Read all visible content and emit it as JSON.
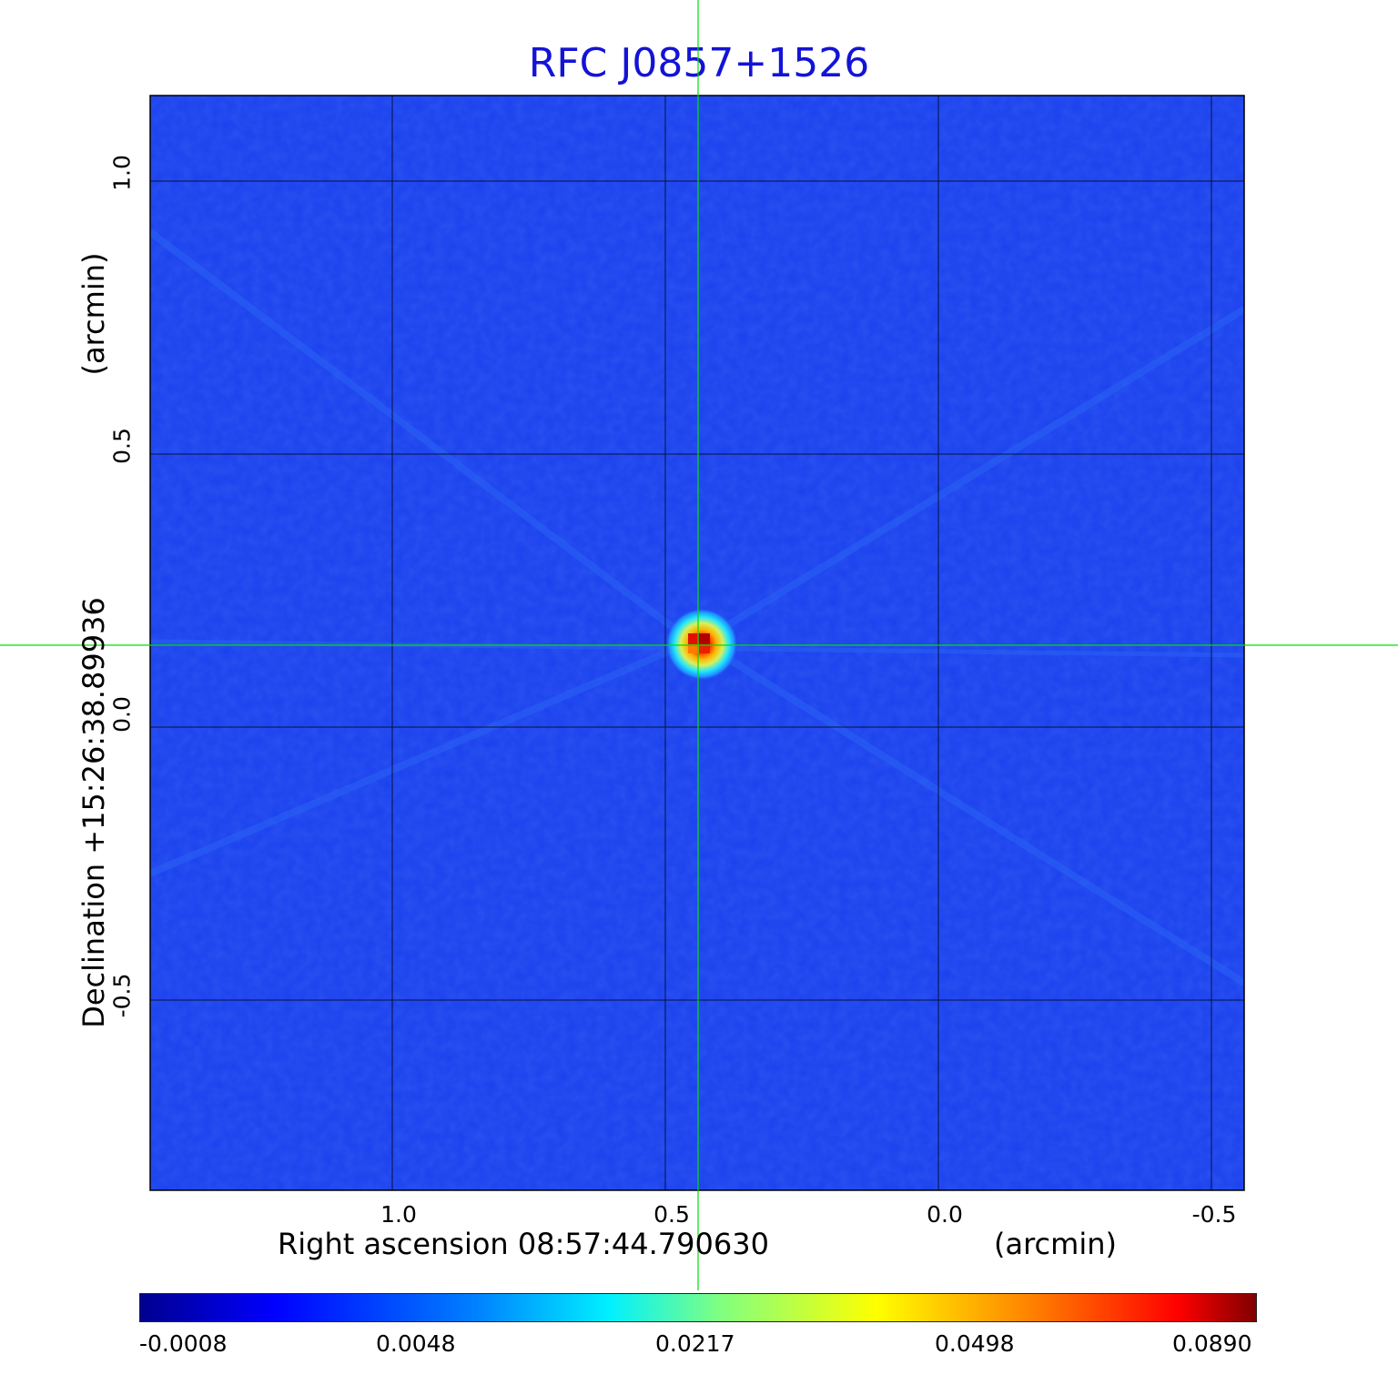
{
  "title": "RFC J0857+1526",
  "x_axis": {
    "label": "Right ascension  08:57:44.790630",
    "unit": "(arcmin)",
    "ticks": [
      "1.0",
      "0.5",
      "0.0",
      "-0.5"
    ]
  },
  "y_axis": {
    "label": "Declination  +15:26:38.89936",
    "unit": "(arcmin)",
    "ticks": [
      "1.0",
      "0.5",
      "0.0",
      "-0.5"
    ]
  },
  "colorbar": {
    "colormap": "jet",
    "ticks": [
      "-0.0008",
      "0.0048",
      "0.0217",
      "0.0498",
      "0.0890"
    ]
  },
  "colors": {
    "title": "#1313d6",
    "crosshair": "#00e000",
    "grid": "#000000",
    "background_map": "#1a40ee"
  },
  "source": {
    "ra_offset_arcmin": 0.46,
    "dec_offset_arcmin": 0.15
  }
}
